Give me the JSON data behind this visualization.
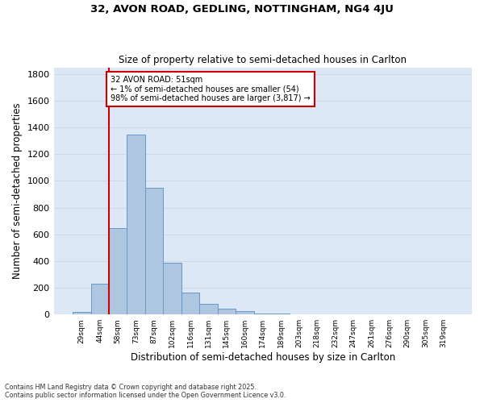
{
  "title1": "32, AVON ROAD, GEDLING, NOTTINGHAM, NG4 4JU",
  "title2": "Size of property relative to semi-detached houses in Carlton",
  "xlabel": "Distribution of semi-detached houses by size in Carlton",
  "ylabel": "Number of semi-detached properties",
  "footnote1": "Contains HM Land Registry data © Crown copyright and database right 2025.",
  "footnote2": "Contains public sector information licensed under the Open Government Licence v3.0.",
  "categories": [
    "29sqm",
    "44sqm",
    "58sqm",
    "73sqm",
    "87sqm",
    "102sqm",
    "116sqm",
    "131sqm",
    "145sqm",
    "160sqm",
    "174sqm",
    "189sqm",
    "203sqm",
    "218sqm",
    "232sqm",
    "247sqm",
    "261sqm",
    "276sqm",
    "290sqm",
    "305sqm",
    "319sqm"
  ],
  "values": [
    20,
    230,
    645,
    1345,
    950,
    390,
    165,
    80,
    42,
    28,
    10,
    5,
    0,
    0,
    0,
    0,
    0,
    0,
    0,
    0,
    0
  ],
  "bar_color": "#aec6e0",
  "bar_edge_color": "#6699cc",
  "grid_color": "#d0d8e8",
  "bg_color": "#dce8f5",
  "vline_color": "#cc0000",
  "annotation_text": "32 AVON ROAD: 51sqm\n← 1% of semi-detached houses are smaller (54)\n98% of semi-detached houses are larger (3,817) →",
  "annotation_box_color": "#cc0000",
  "ylim": [
    0,
    1850
  ],
  "yticks": [
    0,
    200,
    400,
    600,
    800,
    1000,
    1200,
    1400,
    1600,
    1800
  ]
}
